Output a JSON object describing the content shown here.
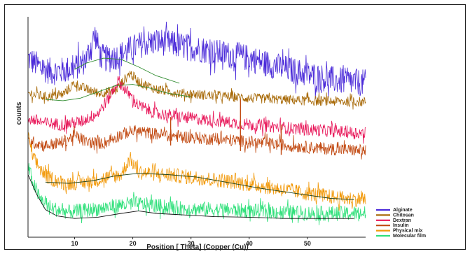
{
  "chart_data": {
    "type": "line",
    "title": "",
    "xlabel": "Position [ Theta] (Copper (Cu))",
    "ylabel": "counts",
    "xlim": [
      2,
      60
    ],
    "x_ticks": [
      10,
      20,
      30,
      40,
      50
    ],
    "x_tick_labels": [
      "10",
      "20",
      "30",
      "40",
      "50"
    ],
    "y_ticks_shown": false,
    "grid": false,
    "legend_position": "bottom-right",
    "note": "Stacked XRD patterns; y values are relative intensity with vertical offsets as displayed.",
    "series": [
      {
        "name": "Alginate",
        "color": "#4b2bd9",
        "noise": 0.55,
        "points": [
          [
            2,
            7.95
          ],
          [
            4,
            7.6
          ],
          [
            6,
            7.4
          ],
          [
            8,
            7.45
          ],
          [
            10,
            7.55
          ],
          [
            12,
            7.9
          ],
          [
            13.5,
            8.9
          ],
          [
            14.5,
            8.0
          ],
          [
            16,
            7.9
          ],
          [
            18,
            8.1
          ],
          [
            20,
            8.35
          ],
          [
            22,
            8.55
          ],
          [
            25,
            8.6
          ],
          [
            28,
            8.45
          ],
          [
            32,
            8.3
          ],
          [
            36,
            8.1
          ],
          [
            40,
            7.95
          ],
          [
            45,
            7.6
          ],
          [
            50,
            7.3
          ],
          [
            55,
            7.05
          ],
          [
            60,
            6.95
          ]
        ]
      },
      {
        "name": "Chitosan",
        "color": "#a86a08",
        "noise": 0.2,
        "points": [
          [
            2,
            6.55
          ],
          [
            5,
            6.4
          ],
          [
            8,
            6.5
          ],
          [
            10,
            6.95
          ],
          [
            11.5,
            6.75
          ],
          [
            14,
            6.55
          ],
          [
            17,
            6.65
          ],
          [
            19.5,
            7.35
          ],
          [
            21,
            7.0
          ],
          [
            24,
            6.7
          ],
          [
            28,
            6.55
          ],
          [
            34,
            6.45
          ],
          [
            40,
            6.35
          ],
          [
            50,
            6.25
          ],
          [
            60,
            6.2
          ]
        ]
      },
      {
        "name": "Dextran",
        "color": "#e8185a",
        "noise": 0.25,
        "points": [
          [
            2,
            5.55
          ],
          [
            5,
            5.35
          ],
          [
            8,
            5.3
          ],
          [
            11,
            5.4
          ],
          [
            14,
            5.75
          ],
          [
            16,
            6.4
          ],
          [
            17.5,
            7.05
          ],
          [
            19,
            6.6
          ],
          [
            21,
            6.05
          ],
          [
            24,
            5.75
          ],
          [
            28,
            5.6
          ],
          [
            34,
            5.45
          ],
          [
            40,
            5.3
          ],
          [
            50,
            5.1
          ],
          [
            60,
            4.95
          ]
        ]
      },
      {
        "name": "Insulin",
        "color": "#c24a12",
        "noise": 0.25,
        "points": [
          [
            2,
            4.65
          ],
          [
            5,
            4.45
          ],
          [
            8,
            4.6
          ],
          [
            10,
            4.85
          ],
          [
            12,
            4.6
          ],
          [
            15,
            4.55
          ],
          [
            18,
            4.9
          ],
          [
            20,
            5.05
          ],
          [
            23,
            4.95
          ],
          [
            27,
            4.85
          ],
          [
            32,
            4.75
          ],
          [
            38,
            4.65
          ],
          [
            45,
            4.5
          ],
          [
            52,
            4.35
          ],
          [
            60,
            4.25
          ]
        ]
      },
      {
        "name": "Physical mix",
        "color": "#f29a0c",
        "noise": 0.3,
        "points": [
          [
            2,
            4.8
          ],
          [
            3,
            3.9
          ],
          [
            5,
            3.25
          ],
          [
            8,
            2.95
          ],
          [
            12,
            3.0
          ],
          [
            15,
            3.15
          ],
          [
            18,
            3.3
          ],
          [
            19.5,
            3.95
          ],
          [
            21,
            3.4
          ],
          [
            25,
            3.3
          ],
          [
            30,
            3.2
          ],
          [
            36,
            3.05
          ],
          [
            42,
            2.85
          ],
          [
            50,
            2.55
          ],
          [
            56,
            2.35
          ],
          [
            60,
            2.3
          ]
        ]
      },
      {
        "name": "Molecular film",
        "color": "#2fe07a",
        "noise": 0.3,
        "points": [
          [
            2,
            3.6
          ],
          [
            3,
            2.9
          ],
          [
            4,
            2.35
          ],
          [
            6,
            1.95
          ],
          [
            9,
            1.8
          ],
          [
            13,
            1.9
          ],
          [
            17,
            2.05
          ],
          [
            20,
            2.15
          ],
          [
            24,
            2.05
          ],
          [
            28,
            1.95
          ],
          [
            34,
            1.9
          ],
          [
            40,
            1.85
          ],
          [
            46,
            1.8
          ],
          [
            52,
            1.75
          ],
          [
            58,
            1.75
          ],
          [
            60,
            1.75
          ]
        ]
      }
    ],
    "fit_curves": [
      {
        "over": "Alginate",
        "points": [
          [
            10,
            7.5
          ],
          [
            12,
            7.75
          ],
          [
            15,
            7.95
          ],
          [
            18,
            7.9
          ],
          [
            21,
            7.6
          ],
          [
            24,
            7.25
          ],
          [
            28,
            6.95
          ]
        ]
      },
      {
        "over": "Chitosan",
        "points": [
          [
            5,
            6.3
          ],
          [
            8,
            6.25
          ],
          [
            11,
            6.35
          ],
          [
            14,
            6.6
          ],
          [
            17,
            6.85
          ],
          [
            20,
            6.9
          ],
          [
            23,
            6.75
          ],
          [
            26,
            6.55
          ],
          [
            30,
            6.4
          ]
        ]
      },
      {
        "over": "Physical mix",
        "points": [
          [
            5,
            3.0
          ],
          [
            9,
            2.95
          ],
          [
            13,
            3.05
          ],
          [
            17,
            3.25
          ],
          [
            21,
            3.35
          ],
          [
            26,
            3.3
          ],
          [
            31,
            3.2
          ],
          [
            36,
            3.0
          ],
          [
            42,
            2.75
          ],
          [
            48,
            2.55
          ],
          [
            54,
            2.35
          ],
          [
            58,
            2.3
          ]
        ]
      },
      {
        "over": "Molecular film",
        "points": [
          [
            2,
            3.3
          ],
          [
            3.5,
            2.5
          ],
          [
            5,
            1.9
          ],
          [
            7,
            1.65
          ],
          [
            10,
            1.55
          ],
          [
            14,
            1.6
          ],
          [
            18,
            1.75
          ],
          [
            21,
            1.85
          ],
          [
            24,
            1.75
          ],
          [
            28,
            1.7
          ],
          [
            34,
            1.62
          ],
          [
            40,
            1.6
          ],
          [
            46,
            1.55
          ],
          [
            52,
            1.55
          ],
          [
            58,
            1.55
          ]
        ]
      }
    ],
    "ylim": [
      0.8,
      9.6
    ],
    "legend": [
      "Alginate",
      "Chitosan",
      "Dextran",
      "Insulin",
      "Physical mix",
      "Molecular film"
    ]
  }
}
